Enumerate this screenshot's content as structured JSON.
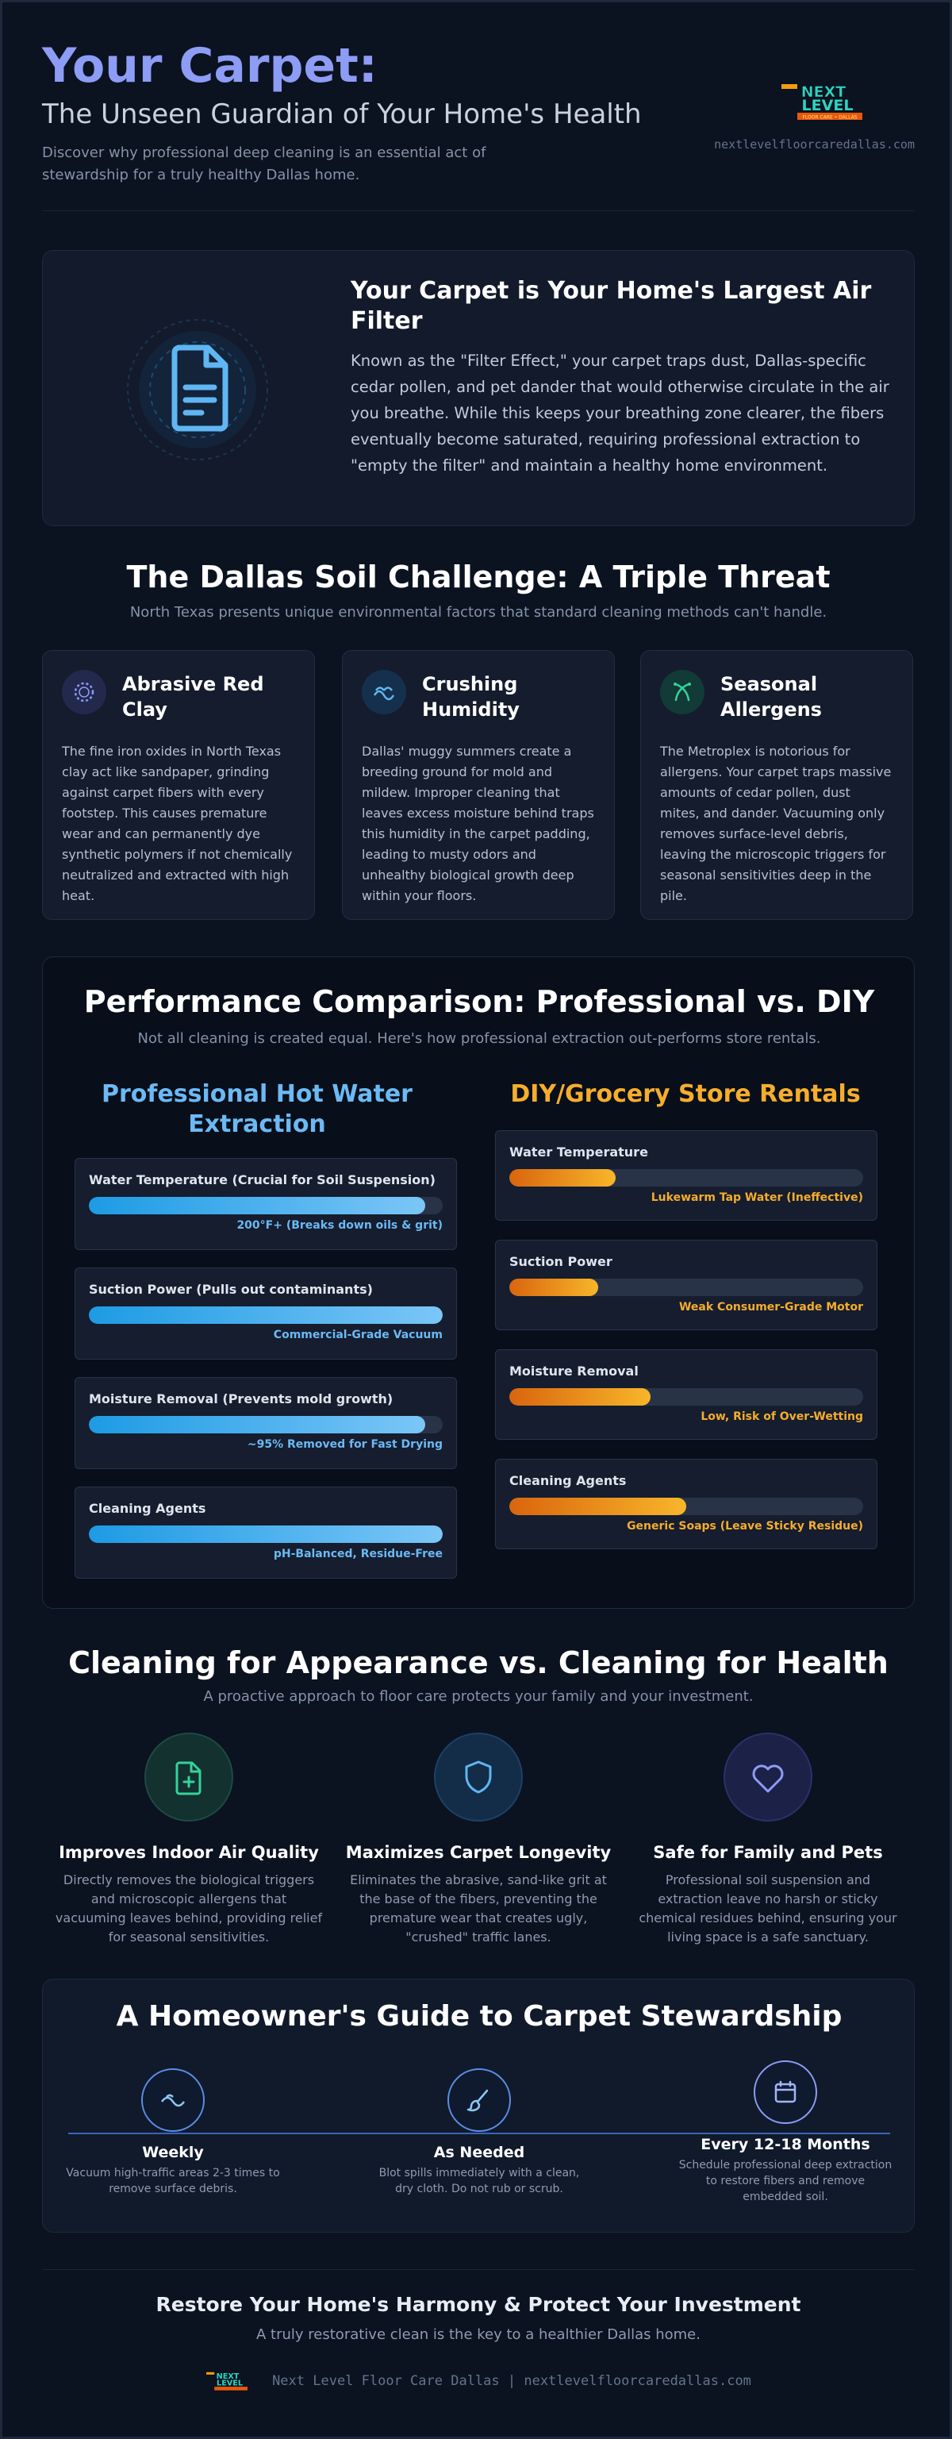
{
  "header": {
    "title": "Your Carpet:",
    "subtitle": "The Unseen Guardian of Your Home's Health",
    "description": "Discover why professional deep cleaning is an essential act of stewardship for a truly healthy Dallas home.",
    "site_url": "nextlevelfloorcaredallas.com",
    "logo": {
      "line1": "NEXT",
      "line2": "LEVEL",
      "tagline": "FLOOR CARE • DALLAS"
    }
  },
  "filter_card": {
    "icon": "document-icon",
    "title": "Your Carpet is Your Home's Largest Air Filter",
    "body": "Known as the \"Filter Effect,\" your carpet traps dust, Dallas-specific cedar pollen, and pet dander that would otherwise circulate in the air you breathe. While this keeps your breathing zone clearer, the fibers eventually become saturated, requiring professional extraction to \"empty the filter\" and maintain a healthy home environment."
  },
  "soil_challenge": {
    "title": "The Dallas Soil Challenge: A Triple Threat",
    "subtitle": "North Texas presents unique environmental factors that standard cleaning methods can't handle.",
    "cards": [
      {
        "icon": "spinner-icon",
        "title": "Abrasive Red Clay",
        "body": "The fine iron oxides in North Texas clay act like sandpaper, grinding against carpet fibers with every footstep. This causes premature wear and can permanently dye synthetic polymers if not chemically neutralized and extracted with high heat."
      },
      {
        "icon": "humidity-icon",
        "title": "Crushing Humidity",
        "body": "Dallas' muggy summers create a breeding ground for mold and mildew. Improper cleaning that leaves excess moisture behind traps this humidity in the carpet padding, leading to musty odors and unhealthy biological growth deep within your floors."
      },
      {
        "icon": "allergen-icon",
        "title": "Seasonal Allergens",
        "body": "The Metroplex is notorious for allergens. Your carpet traps massive amounts of cedar pollen, dust mites, and dander. Vacuuming only removes surface-level debris, leaving the microscopic triggers for seasonal sensitivities deep in the pile."
      }
    ]
  },
  "performance": {
    "title": "Performance Comparison: Professional vs. DIY",
    "subtitle": "Not all cleaning is created equal. Here's how professional extraction out-performs store rentals.",
    "professional": {
      "title": "Professional Hot Water Extraction",
      "metrics": [
        {
          "label": "Water Temperature (Crucial for Soil Suspension)",
          "value": "200°F+ (Breaks down oils & grit)",
          "level": 0.95
        },
        {
          "label": "Suction Power (Pulls out contaminants)",
          "value": "Commercial-Grade Vacuum",
          "level": 1.0
        },
        {
          "label": "Moisture Removal (Prevents mold growth)",
          "value": "~95% Removed for Fast Drying",
          "level": 0.95
        },
        {
          "label": "Cleaning Agents",
          "value": "pH-Balanced, Residue-Free",
          "level": 1.0
        }
      ]
    },
    "diy": {
      "title": "DIY/Grocery Store Rentals",
      "metrics": [
        {
          "label": "Water Temperature",
          "value": "Lukewarm Tap Water (Ineffective)",
          "level": 0.3
        },
        {
          "label": "Suction Power",
          "value": "Weak Consumer-Grade Motor",
          "level": 0.25
        },
        {
          "label": "Moisture Removal",
          "value": "Low, Risk of Over-Wetting",
          "level": 0.4
        },
        {
          "label": "Cleaning Agents",
          "value": "Generic Soaps (Leave Sticky Residue)",
          "level": 0.5
        }
      ]
    }
  },
  "health": {
    "title": "Cleaning for Appearance vs. Cleaning for Health",
    "subtitle": "A proactive approach to floor care protects your family and your investment.",
    "benefits": [
      {
        "icon": "file-plus-icon",
        "title": "Improves Indoor Air Quality",
        "body": "Directly removes the biological triggers and microscopic allergens that vacuuming leaves behind, providing relief for seasonal sensitivities."
      },
      {
        "icon": "shield-icon",
        "title": "Maximizes Carpet Longevity",
        "body": "Eliminates the abrasive, sand-like grit at the base of the fibers, preventing the premature wear that creates ugly, \"crushed\" traffic lanes."
      },
      {
        "icon": "heart-icon",
        "title": "Safe for Family and Pets",
        "body": "Professional soil suspension and extraction leave no harsh or sticky chemical residues behind, ensuring your living space is a safe sanctuary."
      }
    ]
  },
  "guide": {
    "title": "A Homeowner's Guide to Carpet Stewardship",
    "steps": [
      {
        "icon": "wind-icon",
        "title": "Weekly",
        "body": "Vacuum high-traffic areas 2-3 times to remove surface debris."
      },
      {
        "icon": "brush-icon",
        "title": "As Needed",
        "body": "Blot spills immediately with a clean, dry cloth. Do not rub or scrub."
      },
      {
        "icon": "calendar-icon",
        "title": "Every 12-18 Months",
        "body": "Schedule professional deep extraction to restore fibers and remove embedded soil."
      }
    ]
  },
  "footer": {
    "title": "Restore Your Home's Harmony & Protect Your Investment",
    "subtitle": "A truly restorative clean is the key to a healthier Dallas home.",
    "brand_text": "Next Level Floor Care Dallas | nextlevelfloorcaredallas.com"
  }
}
